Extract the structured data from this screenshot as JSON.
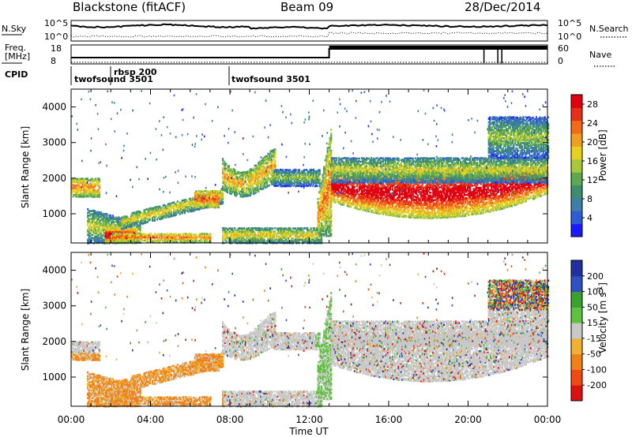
{
  "header": {
    "station": "Blackstone (fitACF)",
    "beam": "Beam 09",
    "date": "28/Dec/2014"
  },
  "noise_panel": {
    "left_label": "N.Sky",
    "right_label": "N.Search",
    "left_ticks": [
      "10^5",
      "10^0"
    ],
    "right_ticks": [
      "10^5",
      "10^0"
    ]
  },
  "freq_panel": {
    "left_label_line1": "Freq.",
    "left_label_line2": "[MHz]",
    "right_label": "Nave",
    "left_ticks": [
      "18",
      "8"
    ],
    "right_ticks": [
      "60",
      "0"
    ]
  },
  "cpid": {
    "label": "CPID",
    "entries": [
      {
        "name": "twofsound 3501",
        "start_hour": 0
      },
      {
        "name": "rbsp 200",
        "start_hour": 1.9
      },
      {
        "name": "twofsound 3501",
        "start_hour": 7.7
      }
    ]
  },
  "chart_data": [
    {
      "type": "heatmap",
      "name": "Power",
      "ylabel": "Slant Range [km]",
      "xlim": [
        0,
        24
      ],
      "ylim": [
        180,
        4500
      ],
      "yticks": [
        1000,
        2000,
        3000,
        4000
      ],
      "colorbar": {
        "label": "Power [dB]",
        "ticks": [
          "4",
          "8",
          "12",
          "16",
          "20",
          "24",
          "28"
        ],
        "range": [
          0,
          30
        ],
        "colors": [
          "#1a1aff",
          "#2e5bd6",
          "#3d7fa8",
          "#3e8e6e",
          "#5fa850",
          "#a8c83c",
          "#e8d020",
          "#f0a020",
          "#f06a18",
          "#e83018",
          "#e00010"
        ]
      }
    },
    {
      "type": "heatmap",
      "name": "Velocity",
      "ylabel": "Slant Range [km]",
      "xlabel": "Time UT",
      "xlim": [
        0,
        24
      ],
      "ylim": [
        180,
        4500
      ],
      "yticks": [
        1000,
        2000,
        3000,
        4000
      ],
      "xticks": [
        "00:00",
        "04:00",
        "08:00",
        "12:00",
        "16:00",
        "20:00",
        "00:00"
      ],
      "colorbar": {
        "label": "Velocity [m s",
        "label_sup": "-1",
        "label_end": "]",
        "ticks": [
          "-200",
          "-100",
          "-50",
          "-15",
          "15",
          "50",
          "100",
          "200"
        ],
        "colors": [
          "#e01010",
          "#f04a10",
          "#f08018",
          "#f0b030",
          "#c8c8c8",
          "#60c040",
          "#3aa030",
          "#3050c0",
          "#2030a0"
        ]
      }
    }
  ]
}
